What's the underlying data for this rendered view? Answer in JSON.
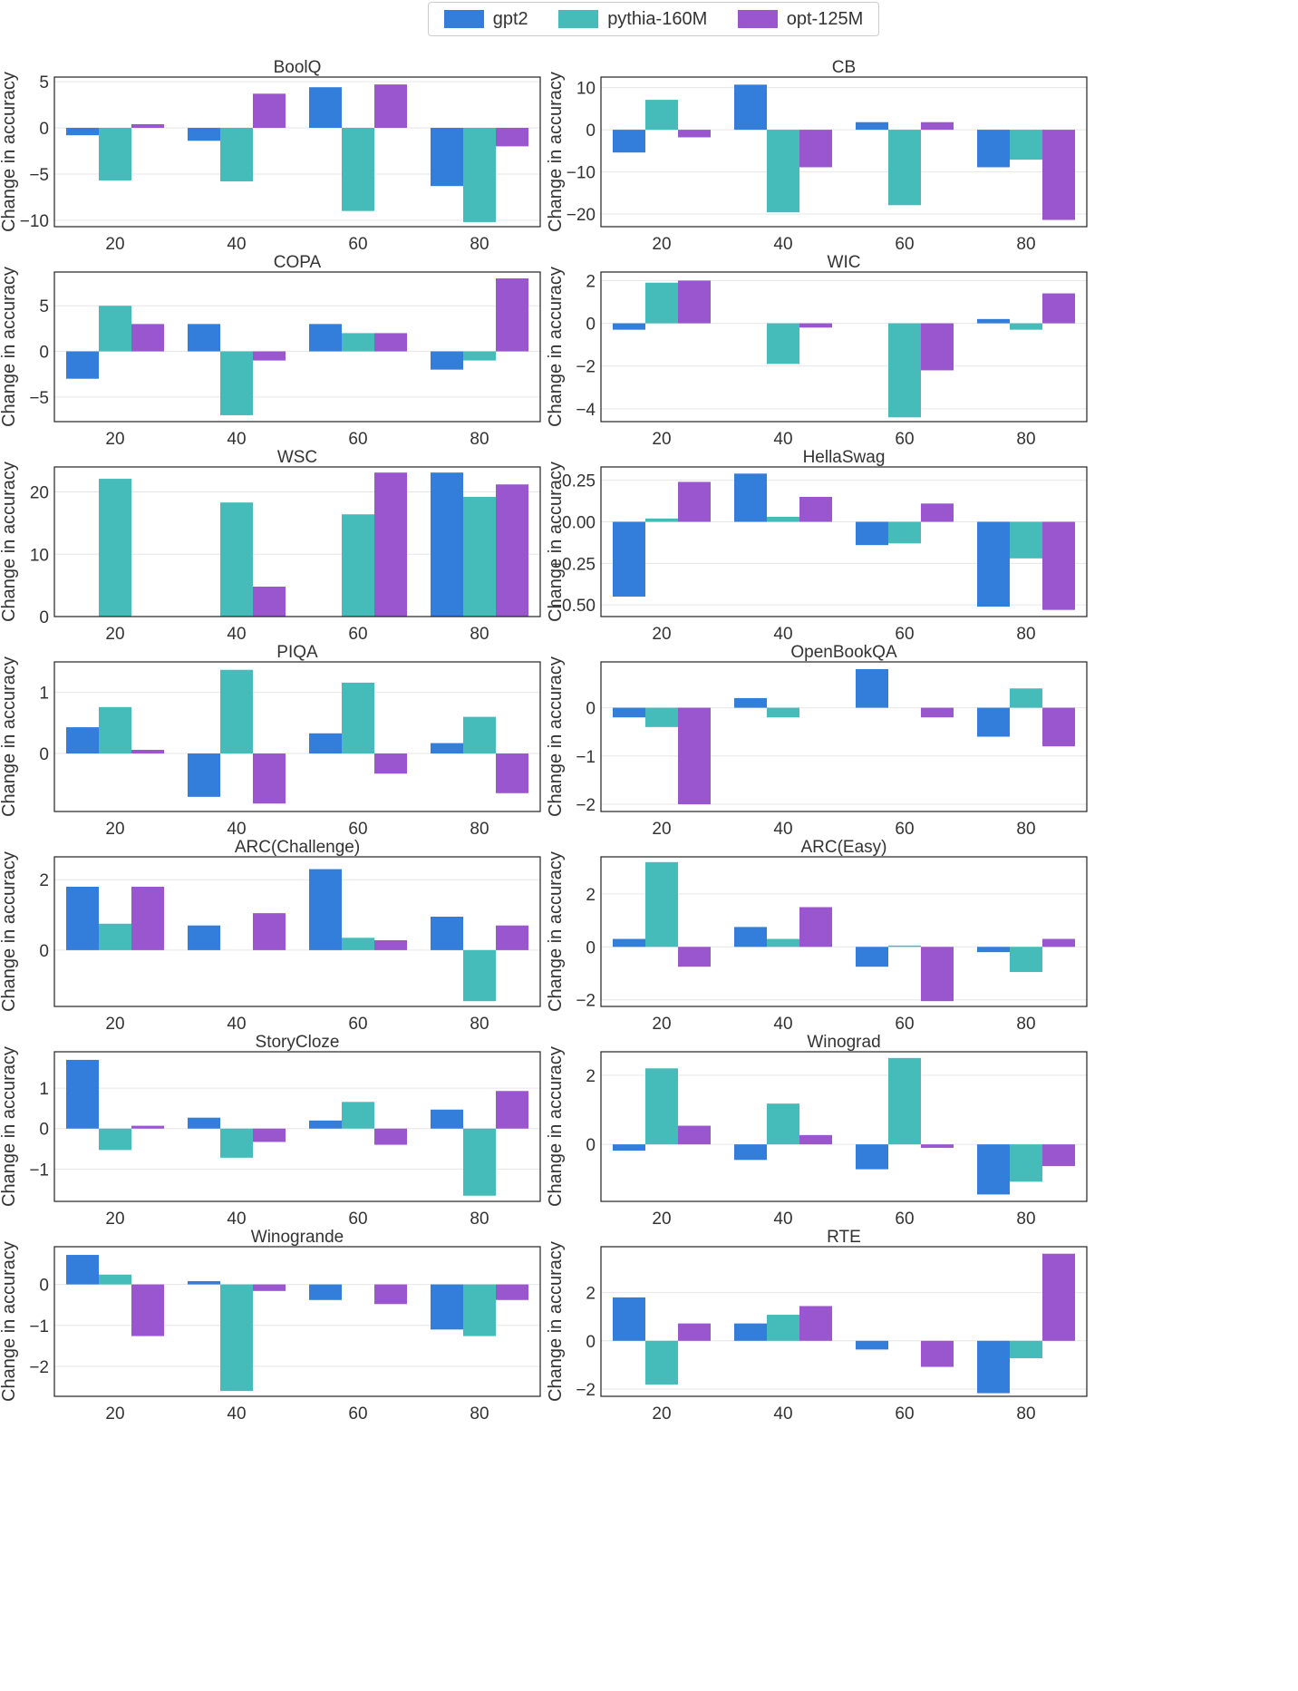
{
  "chart_data": {
    "type": "bar",
    "layout": "7x2 grid of grouped bar subplots",
    "categories": [
      "20",
      "40",
      "60",
      "80"
    ],
    "ylabel": "Change in accuracy",
    "legend": {
      "placement": "top-center",
      "entries": [
        {
          "name": "gpt2",
          "color": "#337ddb"
        },
        {
          "name": "pythia-160M",
          "color": "#45bcba"
        },
        {
          "name": "opt-125M",
          "color": "#9a56cf"
        }
      ]
    },
    "grid": true,
    "panels": [
      {
        "title": "BoolQ",
        "ylim": [
          -10.7,
          5.5
        ],
        "yticks": [
          5,
          0,
          -5,
          -10
        ],
        "series": [
          {
            "name": "gpt2",
            "values": [
              -0.8,
              -1.4,
              4.4,
              -6.3
            ]
          },
          {
            "name": "pythia-160M",
            "values": [
              -5.7,
              -5.8,
              -9.0,
              -10.2
            ]
          },
          {
            "name": "opt-125M",
            "values": [
              0.4,
              3.7,
              4.7,
              -2.0
            ]
          }
        ]
      },
      {
        "title": "CB",
        "ylim": [
          -23.0,
          12.5
        ],
        "yticks": [
          10,
          0,
          -10,
          -20
        ],
        "series": [
          {
            "name": "gpt2",
            "values": [
              -5.4,
              10.7,
              1.8,
              -8.9
            ]
          },
          {
            "name": "pythia-160M",
            "values": [
              7.1,
              -19.6,
              -17.9,
              -7.1
            ]
          },
          {
            "name": "opt-125M",
            "values": [
              -1.8,
              -8.9,
              1.8,
              -21.4
            ]
          }
        ]
      },
      {
        "title": "COPA",
        "ylim": [
          -7.7,
          8.7
        ],
        "yticks": [
          5,
          0,
          -5
        ],
        "series": [
          {
            "name": "gpt2",
            "values": [
              -3.0,
              3.0,
              3.0,
              -2.0
            ]
          },
          {
            "name": "pythia-160M",
            "values": [
              5.0,
              -7.0,
              2.0,
              -1.0
            ]
          },
          {
            "name": "opt-125M",
            "values": [
              3.0,
              -1.0,
              2.0,
              8.0
            ]
          }
        ]
      },
      {
        "title": "WIC",
        "ylim": [
          -4.6,
          2.4
        ],
        "yticks": [
          2,
          0,
          -2,
          -4
        ],
        "series": [
          {
            "name": "gpt2",
            "values": [
              -0.3,
              0.0,
              0.0,
              0.2
            ]
          },
          {
            "name": "pythia-160M",
            "values": [
              1.9,
              -1.9,
              -4.4,
              -0.3
            ]
          },
          {
            "name": "opt-125M",
            "values": [
              2.0,
              -0.2,
              -2.2,
              1.4
            ]
          }
        ]
      },
      {
        "title": "WSC",
        "ylim": [
          0,
          24.0
        ],
        "yticks": [
          20,
          10,
          0
        ],
        "series": [
          {
            "name": "gpt2",
            "values": [
              0.0,
              0.0,
              0.0,
              23.1
            ]
          },
          {
            "name": "pythia-160M",
            "values": [
              22.1,
              18.3,
              16.4,
              19.2
            ]
          },
          {
            "name": "opt-125M",
            "values": [
              0.0,
              4.8,
              23.1,
              21.2
            ]
          }
        ]
      },
      {
        "title": "HellaSwag",
        "ylim": [
          -0.57,
          0.33
        ],
        "yticks": [
          0.25,
          0.0,
          -0.25,
          -0.5
        ],
        "ytick_labels": [
          "0.25",
          "0.00",
          "−0.25",
          "−0.50"
        ],
        "series": [
          {
            "name": "gpt2",
            "values": [
              -0.45,
              0.29,
              -0.14,
              -0.51
            ]
          },
          {
            "name": "pythia-160M",
            "values": [
              0.02,
              0.03,
              -0.13,
              -0.22
            ]
          },
          {
            "name": "opt-125M",
            "values": [
              0.24,
              0.15,
              0.11,
              -0.53
            ]
          }
        ]
      },
      {
        "title": "PIQA",
        "ylim": [
          -0.95,
          1.5
        ],
        "yticks": [
          1,
          0
        ],
        "series": [
          {
            "name": "gpt2",
            "values": [
              0.43,
              -0.71,
              0.33,
              0.17
            ]
          },
          {
            "name": "pythia-160M",
            "values": [
              0.76,
              1.37,
              1.16,
              0.6
            ]
          },
          {
            "name": "opt-125M",
            "values": [
              0.06,
              -0.82,
              -0.33,
              -0.65
            ]
          }
        ]
      },
      {
        "title": "OpenBookQA",
        "ylim": [
          -2.15,
          0.95
        ],
        "yticks": [
          0,
          -1,
          -2
        ],
        "series": [
          {
            "name": "gpt2",
            "values": [
              -0.2,
              0.2,
              0.8,
              -0.6
            ]
          },
          {
            "name": "pythia-160M",
            "values": [
              -0.4,
              -0.2,
              0.0,
              0.4
            ]
          },
          {
            "name": "opt-125M",
            "values": [
              -2.0,
              0.0,
              -0.2,
              -0.8
            ]
          }
        ]
      },
      {
        "title": "ARC(Challenge)",
        "ylim": [
          -1.6,
          2.65
        ],
        "yticks": [
          2,
          0
        ],
        "series": [
          {
            "name": "gpt2",
            "values": [
              1.8,
              0.7,
              2.3,
              0.95
            ]
          },
          {
            "name": "pythia-160M",
            "values": [
              0.75,
              0.0,
              0.35,
              -1.45
            ]
          },
          {
            "name": "opt-125M",
            "values": [
              1.8,
              1.05,
              0.28,
              0.7
            ]
          }
        ]
      },
      {
        "title": "ARC(Easy)",
        "ylim": [
          -2.25,
          3.4
        ],
        "yticks": [
          2,
          0,
          -2
        ],
        "series": [
          {
            "name": "gpt2",
            "values": [
              0.3,
              0.75,
              -0.75,
              -0.2
            ]
          },
          {
            "name": "pythia-160M",
            "values": [
              3.2,
              0.3,
              0.05,
              -0.95
            ]
          },
          {
            "name": "opt-125M",
            "values": [
              -0.75,
              1.5,
              -2.05,
              0.3
            ]
          }
        ]
      },
      {
        "title": "StoryCloze",
        "ylim": [
          -1.8,
          1.9
        ],
        "yticks": [
          1,
          0,
          -1
        ],
        "series": [
          {
            "name": "gpt2",
            "values": [
              1.7,
              0.27,
              0.2,
              0.47
            ]
          },
          {
            "name": "pythia-160M",
            "values": [
              -0.53,
              -0.72,
              0.66,
              -1.66
            ]
          },
          {
            "name": "opt-125M",
            "values": [
              0.07,
              -0.33,
              -0.4,
              0.93
            ]
          }
        ]
      },
      {
        "title": "Winograd",
        "ylim": [
          -1.65,
          2.68
        ],
        "yticks": [
          2,
          0
        ],
        "series": [
          {
            "name": "gpt2",
            "values": [
              -0.18,
              -0.45,
              -0.72,
              -1.45
            ]
          },
          {
            "name": "pythia-160M",
            "values": [
              2.2,
              1.18,
              2.5,
              -1.08
            ]
          },
          {
            "name": "opt-125M",
            "values": [
              0.54,
              0.27,
              -0.1,
              -0.63
            ]
          }
        ]
      },
      {
        "title": "Winogrande",
        "ylim": [
          -2.73,
          0.92
        ],
        "yticks": [
          0,
          -1,
          -2
        ],
        "series": [
          {
            "name": "gpt2",
            "values": [
              0.72,
              0.08,
              -0.38,
              -1.1
            ]
          },
          {
            "name": "pythia-160M",
            "values": [
              0.24,
              -2.6,
              0.0,
              -1.26
            ]
          },
          {
            "name": "opt-125M",
            "values": [
              -1.26,
              -0.16,
              -0.48,
              -0.38
            ]
          }
        ]
      },
      {
        "title": "RTE",
        "ylim": [
          -2.3,
          3.9
        ],
        "yticks": [
          2,
          0,
          -2
        ],
        "series": [
          {
            "name": "gpt2",
            "values": [
              1.8,
              0.72,
              -0.36,
              -2.17
            ]
          },
          {
            "name": "pythia-160M",
            "values": [
              -1.81,
              1.08,
              0.0,
              -0.72
            ]
          },
          {
            "name": "opt-125M",
            "values": [
              0.72,
              1.44,
              -1.08,
              3.61
            ]
          }
        ]
      }
    ]
  }
}
